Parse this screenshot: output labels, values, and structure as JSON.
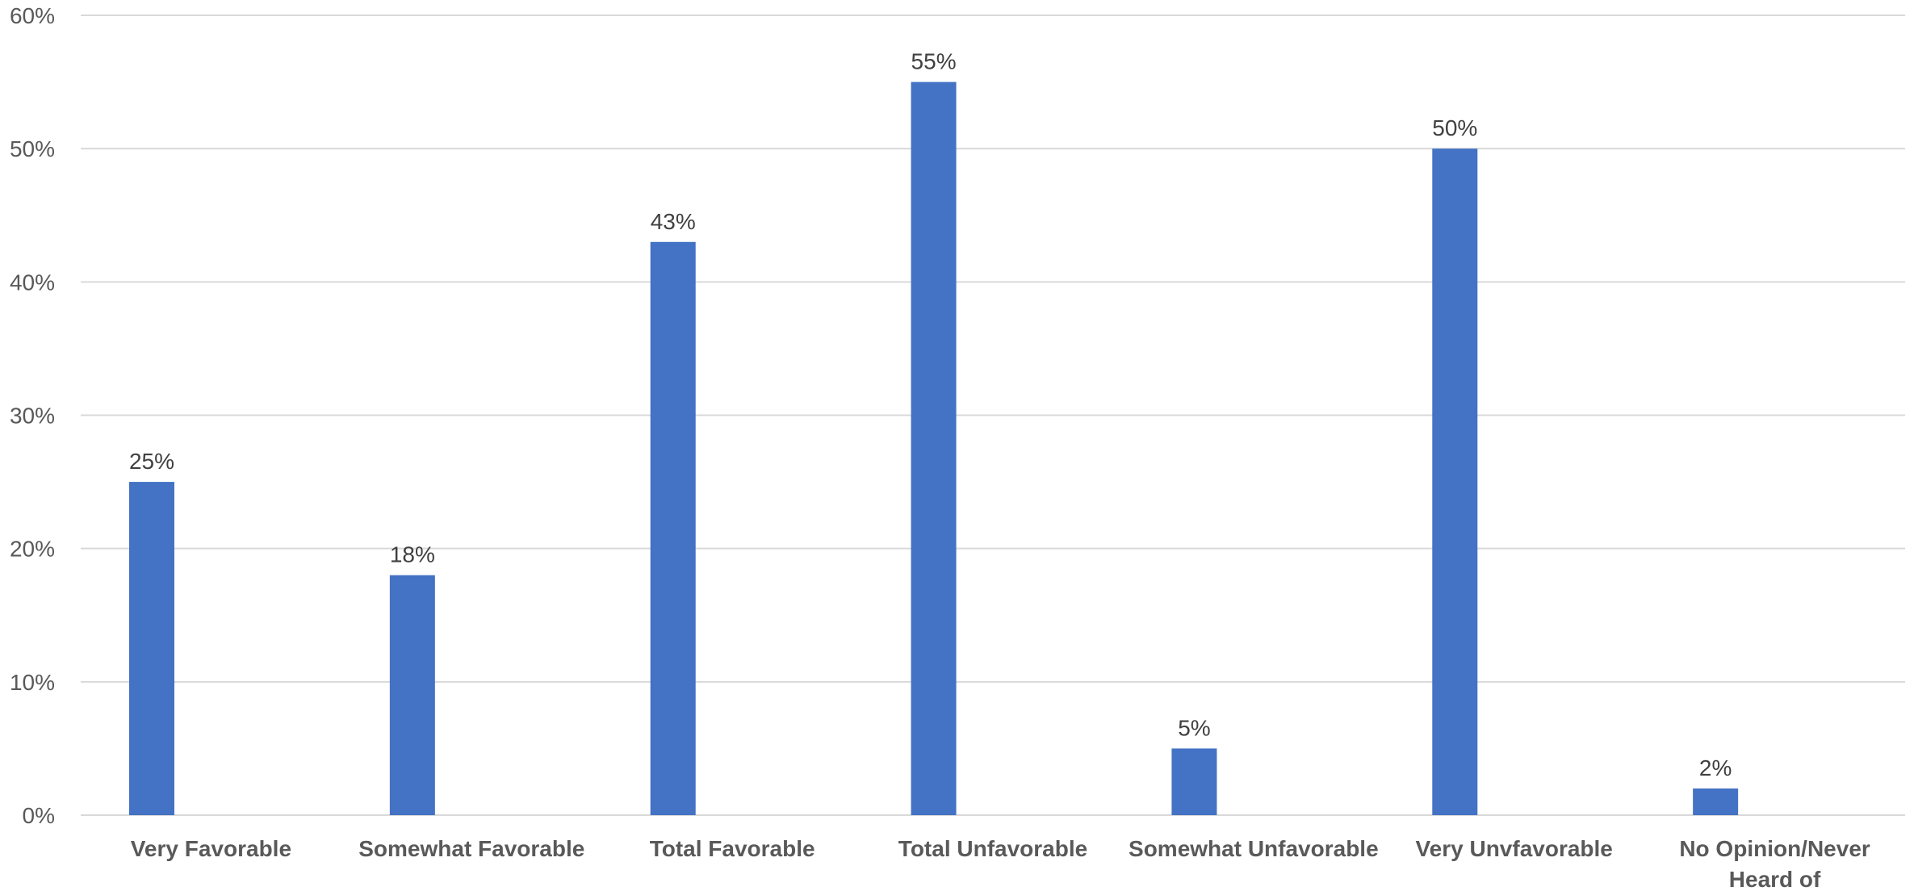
{
  "chart_data": {
    "type": "bar",
    "categories": [
      "Very Favorable",
      "Somewhat Favorable",
      "Total Favorable",
      "Total Unfavorable",
      "Somewhat Unfavorable",
      "Very Unvfavorable",
      "No Opinion/Never Heard of"
    ],
    "category_lines": [
      [
        "Very Favorable"
      ],
      [
        "Somewhat Favorable"
      ],
      [
        "Total Favorable"
      ],
      [
        "Total Unfavorable"
      ],
      [
        "Somewhat Unfavorable"
      ],
      [
        "Very Unvfavorable"
      ],
      [
        "No Opinion/Never",
        "Heard of"
      ]
    ],
    "values": [
      25,
      18,
      43,
      55,
      5,
      50,
      2
    ],
    "data_labels": [
      "25%",
      "18%",
      "43%",
      "55%",
      "5%",
      "50%",
      "2%"
    ],
    "yticks": [
      0,
      10,
      20,
      30,
      40,
      50,
      60
    ],
    "ytick_labels": [
      "0%",
      "10%",
      "20%",
      "30%",
      "40%",
      "50%",
      "60%"
    ],
    "ylim": [
      0,
      60
    ],
    "title": "",
    "xlabel": "",
    "ylabel": "",
    "grid": true,
    "legend": "none",
    "bar_color": "#4472c4"
  }
}
